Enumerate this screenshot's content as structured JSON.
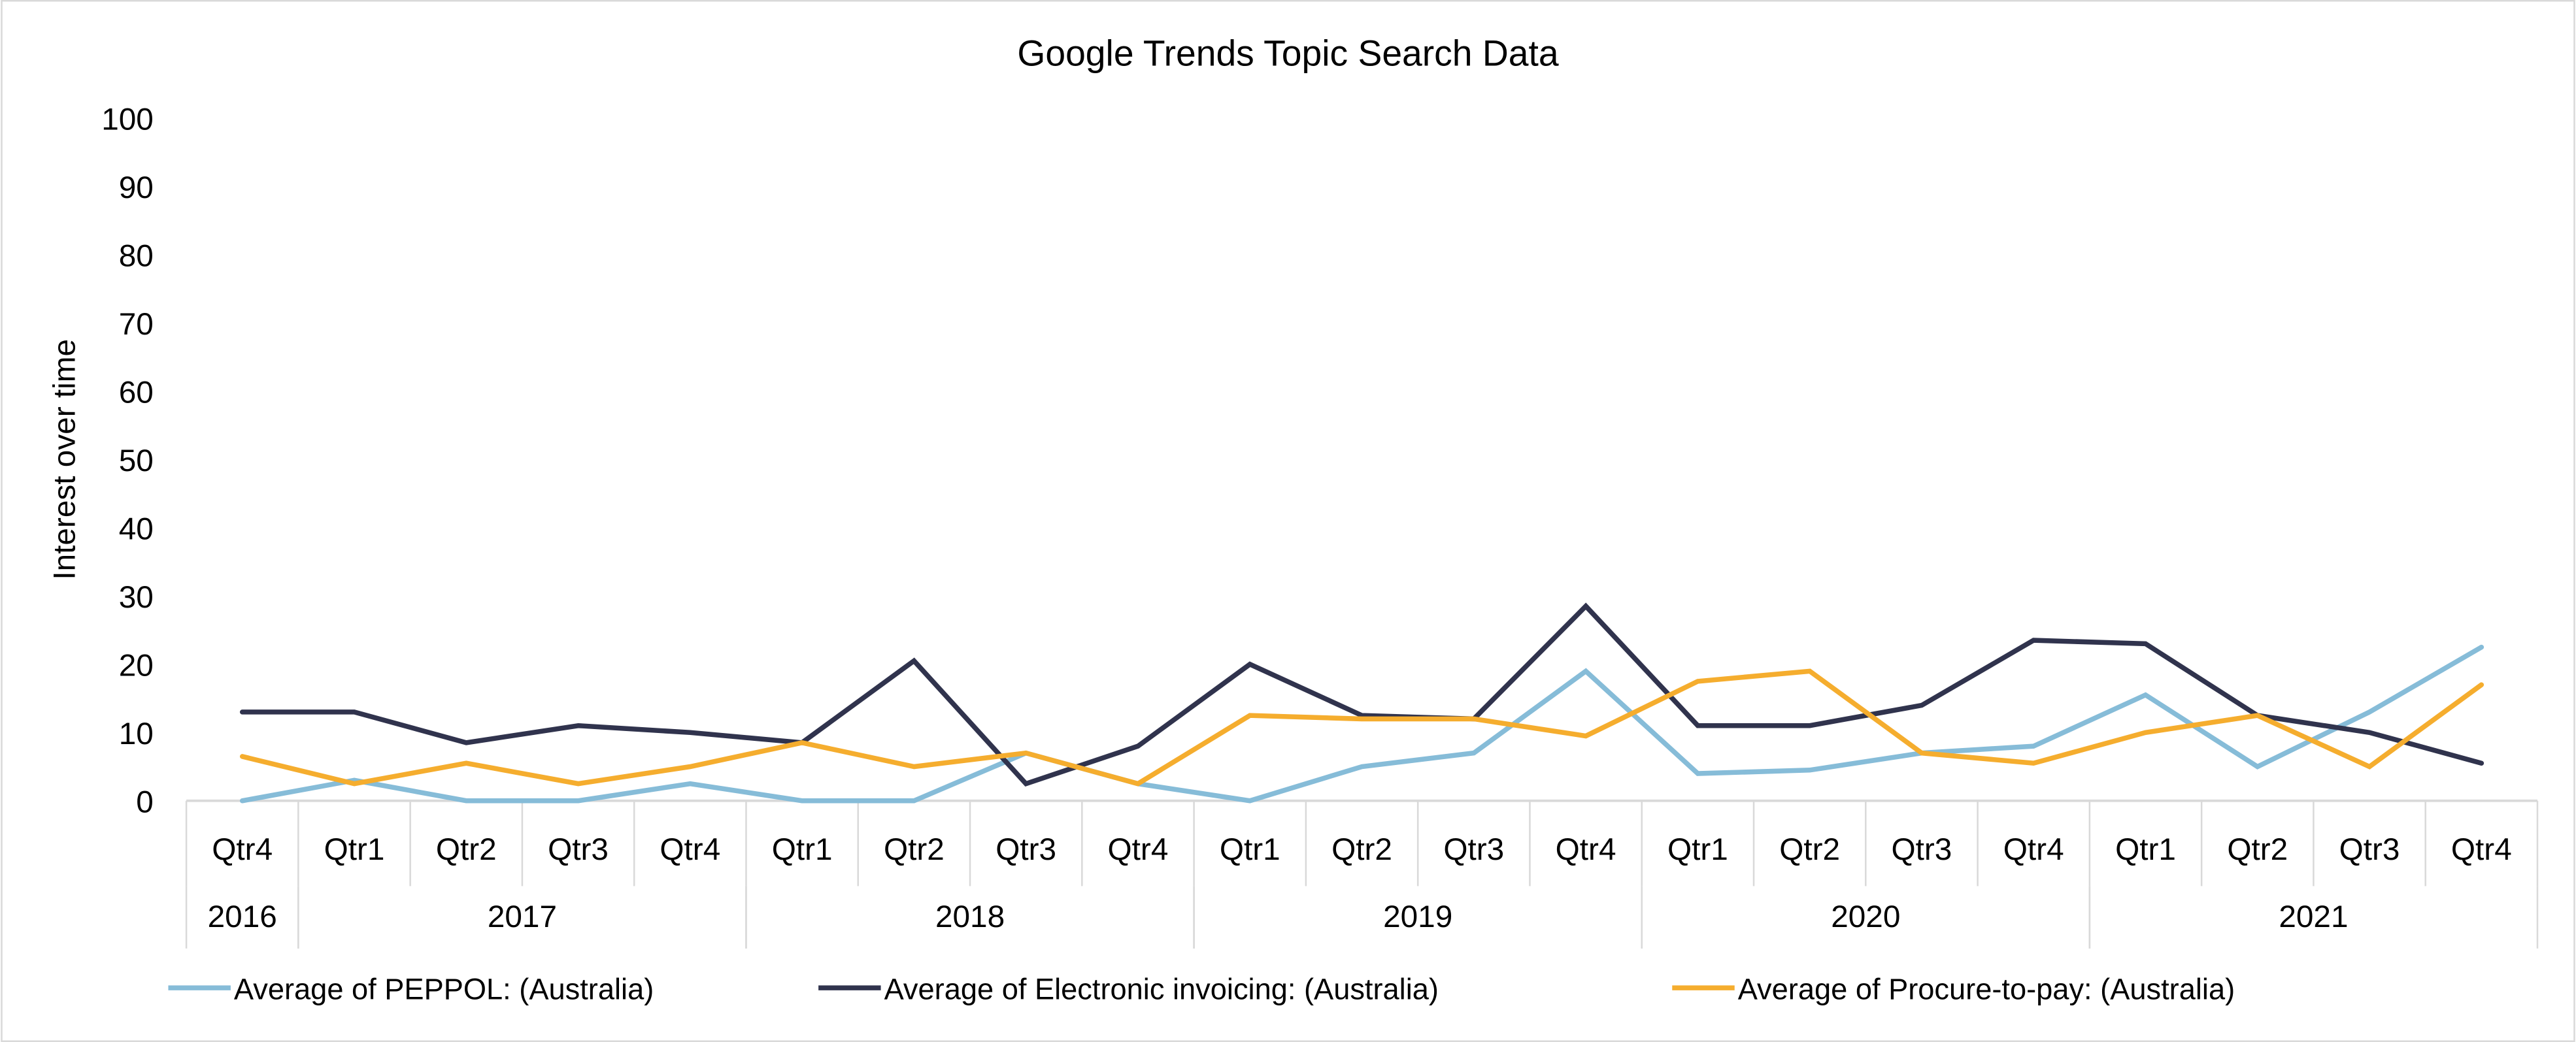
{
  "chart_data": {
    "type": "line",
    "title": "Google Trends Topic Search Data",
    "xlabel": "",
    "ylabel": "Interest over time",
    "ylim": [
      0,
      100
    ],
    "yticks": [
      0,
      10,
      20,
      30,
      40,
      50,
      60,
      70,
      80,
      90,
      100
    ],
    "grid": false,
    "legend_position": "bottom",
    "categories": [
      "Qtr4",
      "Qtr1",
      "Qtr2",
      "Qtr3",
      "Qtr4",
      "Qtr1",
      "Qtr2",
      "Qtr3",
      "Qtr4",
      "Qtr1",
      "Qtr2",
      "Qtr3",
      "Qtr4",
      "Qtr1",
      "Qtr2",
      "Qtr3",
      "Qtr4",
      "Qtr1",
      "Qtr2",
      "Qtr3",
      "Qtr4"
    ],
    "year_groups": [
      {
        "label": "2016",
        "count": 1
      },
      {
        "label": "2017",
        "count": 4
      },
      {
        "label": "2018",
        "count": 4
      },
      {
        "label": "2019",
        "count": 4
      },
      {
        "label": "2020",
        "count": 4
      },
      {
        "label": "2021",
        "count": 4
      }
    ],
    "series": [
      {
        "name": "Average of PEPPOL: (Australia)",
        "color": "#86BCD8",
        "values": [
          0,
          3,
          0,
          0,
          2.5,
          0,
          0,
          7,
          2.5,
          0,
          5,
          7,
          19,
          4,
          4.5,
          7,
          8,
          15.5,
          5,
          13,
          22.5
        ]
      },
      {
        "name": "Average of Electronic invoicing: (Australia)",
        "color": "#30334D",
        "values": [
          13,
          13,
          8.5,
          11,
          10,
          8.5,
          20.5,
          2.5,
          8,
          20,
          12.5,
          12,
          28.5,
          11,
          11,
          14,
          23.5,
          23,
          12.5,
          10,
          5.5
        ]
      },
      {
        "name": "Average of Procure-to-pay: (Australia)",
        "color": "#F5AD2E",
        "values": [
          6.5,
          2.5,
          5.5,
          2.5,
          5,
          8.5,
          5,
          7,
          2.5,
          12.5,
          12,
          12,
          9.5,
          17.5,
          19,
          7,
          5.5,
          10,
          12.5,
          5,
          17
        ]
      }
    ]
  }
}
